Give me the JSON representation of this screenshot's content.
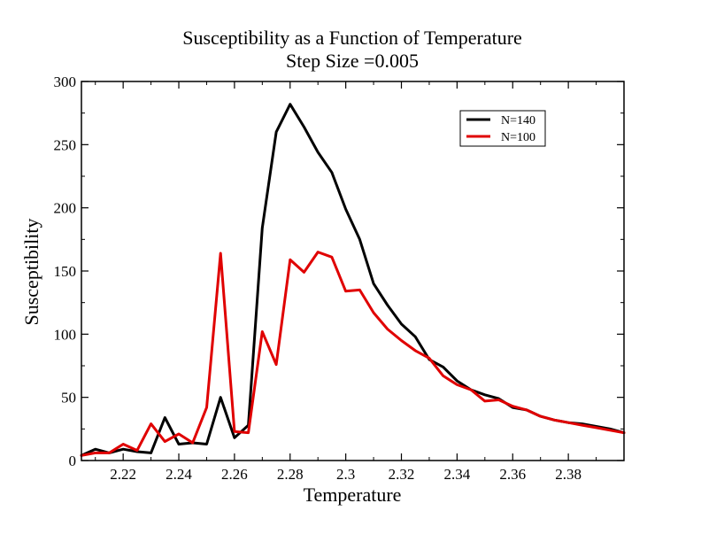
{
  "chart_data": {
    "type": "line",
    "title": "Susceptibility as a Function of Temperature",
    "subtitle": "Step Size =0.005",
    "xlabel": "Temperature",
    "ylabel": "Susceptibility",
    "xlim": [
      2.205,
      2.4
    ],
    "ylim": [
      0,
      300
    ],
    "x_ticks": [
      2.22,
      2.24,
      2.26,
      2.28,
      2.3,
      2.32,
      2.34,
      2.36,
      2.38
    ],
    "x_tick_labels": [
      "2.22",
      "2.24",
      "2.26",
      "2.28",
      "2.3",
      "2.32",
      "2.34",
      "2.36",
      "2.38"
    ],
    "y_ticks": [
      0,
      50,
      100,
      150,
      200,
      250,
      300
    ],
    "y_tick_labels": [
      "0",
      "50",
      "100",
      "150",
      "200",
      "250",
      "300"
    ],
    "grid": false,
    "legend_position": "top-right",
    "x": [
      2.205,
      2.21,
      2.215,
      2.22,
      2.225,
      2.23,
      2.235,
      2.24,
      2.245,
      2.25,
      2.255,
      2.26,
      2.265,
      2.27,
      2.275,
      2.28,
      2.285,
      2.29,
      2.295,
      2.3,
      2.305,
      2.31,
      2.315,
      2.32,
      2.325,
      2.33,
      2.335,
      2.34,
      2.345,
      2.35,
      2.355,
      2.36,
      2.365,
      2.37,
      2.375,
      2.38,
      2.385,
      2.39,
      2.395,
      2.4
    ],
    "series": [
      {
        "name": "N=140",
        "color": "#000000",
        "values": [
          4,
          9,
          6,
          9,
          7,
          6,
          34,
          13,
          14,
          13,
          50,
          18,
          28,
          184,
          260,
          282,
          264,
          244,
          228,
          199,
          175,
          140,
          123,
          108,
          98,
          80,
          74,
          63,
          56,
          52,
          49,
          42,
          40,
          35,
          32,
          30,
          29,
          27,
          25,
          22
        ]
      },
      {
        "name": "N=100",
        "color": "#e00000",
        "values": [
          4,
          6,
          6,
          13,
          8,
          29,
          15,
          21,
          14,
          42,
          164,
          23,
          22,
          102,
          76,
          159,
          149,
          165,
          161,
          134,
          135,
          117,
          104,
          95,
          87,
          81,
          67,
          60,
          56,
          47,
          48,
          43,
          40,
          35,
          32,
          30,
          28,
          26,
          24,
          22
        ]
      }
    ]
  }
}
